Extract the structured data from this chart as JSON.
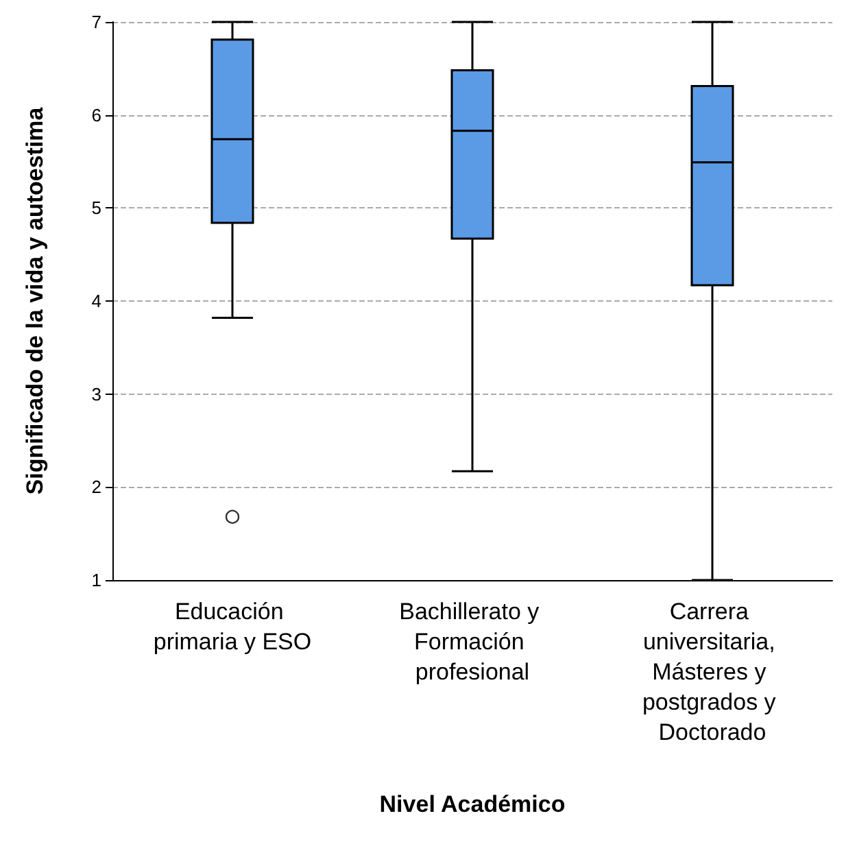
{
  "chart_data": {
    "type": "box",
    "xlabel": "Nivel Académico",
    "ylabel": "Significado de la vida y autoestima",
    "categories": [
      "Educación primaria y ESO",
      "Bachillerato y Formación profesional",
      "Carrera universitaria, Másteres y postgrados y Doctorado"
    ],
    "color": "#5b9be6",
    "boxes": [
      {
        "low": 3.82,
        "q1": 4.84,
        "median": 5.74,
        "q3": 6.81,
        "high": 7,
        "outliers": [
          1.68
        ]
      },
      {
        "low": 2.17,
        "q1": 4.67,
        "median": 5.83,
        "q3": 6.48,
        "high": 7
      },
      {
        "low": 1,
        "q1": 4.17,
        "median": 5.49,
        "q3": 6.31,
        "high": 7
      }
    ],
    "ylim": [
      1,
      7
    ],
    "yticks": [
      1,
      2,
      3,
      4,
      5,
      6,
      7
    ],
    "grid": "y"
  }
}
